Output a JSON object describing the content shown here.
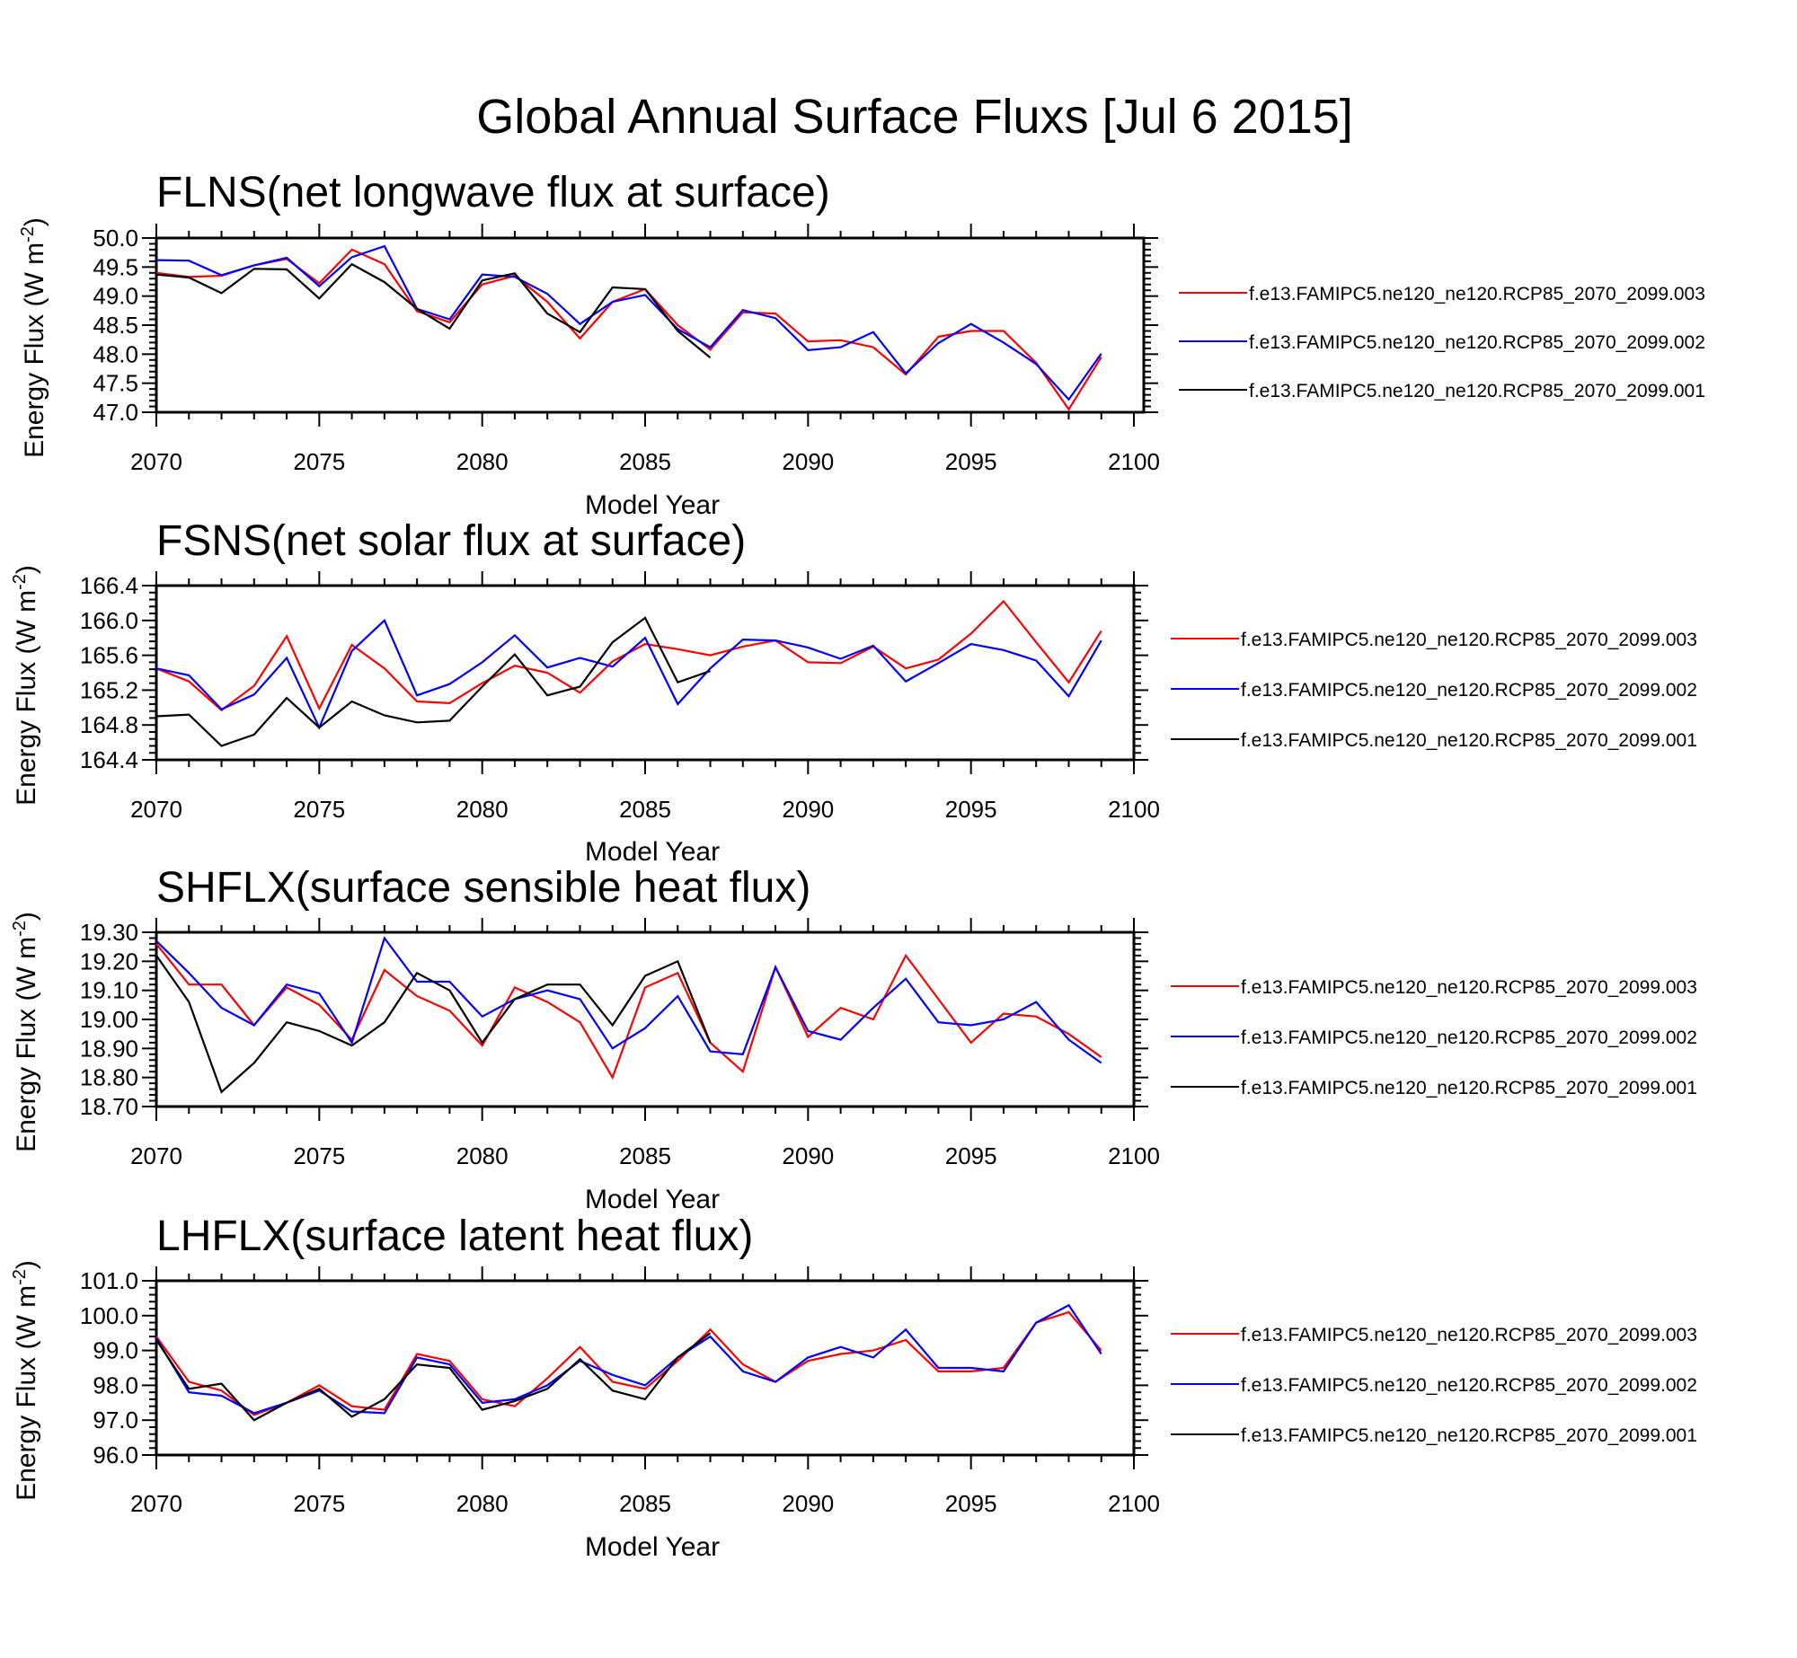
{
  "page_title": "Global Annual Surface Fluxs [Jul  6 2015]",
  "chart_data": [
    {
      "type": "line",
      "title": "FLNS(net longwave flux at surface)",
      "xlabel": "Model Year",
      "ylabel": "Energy Flux (W m-2)",
      "xlim": [
        2070,
        2100
      ],
      "ylim": [
        47.0,
        50.0
      ],
      "x_ticks": [
        "2070",
        "2075",
        "2080",
        "2085",
        "2090",
        "2095",
        "2100"
      ],
      "y_ticks": [
        "50.0",
        "49.5",
        "49.0",
        "48.5",
        "48.0",
        "47.5",
        "47.0"
      ],
      "legend_position": "right",
      "series": [
        {
          "name": "f.e13.FAMIPC5.ne120_ne120.RCP85_2070_2099.003",
          "color": "#ff0000",
          "x": [
            2070,
            2071,
            2072,
            2073,
            2074,
            2075,
            2076,
            2077,
            2078,
            2079,
            2080,
            2081,
            2082,
            2083,
            2084,
            2085,
            2086,
            2087,
            2088,
            2089,
            2090,
            2091,
            2092,
            2093,
            2094,
            2095,
            2096,
            2097,
            2098,
            2099
          ],
          "y": [
            49.4,
            49.33,
            49.35,
            49.53,
            49.64,
            49.22,
            49.8,
            49.55,
            48.74,
            48.55,
            49.2,
            49.35,
            48.9,
            48.27,
            48.9,
            49.12,
            48.5,
            48.08,
            48.72,
            48.7,
            48.22,
            48.24,
            48.12,
            47.65,
            48.3,
            48.4,
            48.4,
            47.85,
            47.05,
            47.95
          ]
        },
        {
          "name": "f.e13.FAMIPC5.ne120_ne120.RCP85_2070_2099.002",
          "color": "#0000ff",
          "x": [
            2070,
            2071,
            2072,
            2073,
            2074,
            2075,
            2076,
            2077,
            2078,
            2079,
            2080,
            2081,
            2082,
            2083,
            2084,
            2085,
            2086,
            2087,
            2088,
            2089,
            2090,
            2091,
            2092,
            2093,
            2094,
            2095,
            2096,
            2097,
            2098,
            2099
          ],
          "y": [
            49.62,
            49.61,
            49.36,
            49.53,
            49.66,
            49.17,
            49.67,
            49.86,
            48.78,
            48.6,
            49.37,
            49.33,
            49.04,
            48.52,
            48.9,
            49.02,
            48.43,
            48.12,
            48.76,
            48.62,
            48.07,
            48.12,
            48.38,
            47.67,
            48.19,
            48.52,
            48.2,
            47.83,
            47.22,
            48.01
          ]
        },
        {
          "name": "f.e13.FAMIPC5.ne120_ne120.RCP85_2070_2099.001",
          "color": "#000000",
          "x": [
            2070,
            2071,
            2072,
            2073,
            2074,
            2075,
            2076,
            2077,
            2078,
            2079,
            2080,
            2081,
            2082,
            2083,
            2084,
            2085,
            2086,
            2087
          ],
          "y": [
            49.37,
            49.32,
            49.05,
            49.47,
            49.46,
            48.96,
            49.55,
            49.24,
            48.78,
            48.44,
            49.27,
            49.39,
            48.7,
            48.38,
            49.15,
            49.12,
            48.4,
            47.94
          ]
        }
      ]
    },
    {
      "type": "line",
      "title": "FSNS(net solar flux at surface)",
      "xlabel": "Model Year",
      "ylabel": "Energy Flux (W m-2)",
      "xlim": [
        2070,
        2100
      ],
      "ylim": [
        164.4,
        166.4
      ],
      "x_ticks": [
        "2070",
        "2075",
        "2080",
        "2085",
        "2090",
        "2095",
        "2100"
      ],
      "y_ticks": [
        "166.4",
        "166.0",
        "165.6",
        "165.2",
        "164.8",
        "164.4"
      ],
      "legend_position": "right",
      "series": [
        {
          "name": "f.e13.FAMIPC5.ne120_ne120.RCP85_2070_2099.003",
          "color": "#ff0000",
          "x": [
            2070,
            2071,
            2072,
            2073,
            2074,
            2075,
            2076,
            2077,
            2078,
            2079,
            2080,
            2081,
            2082,
            2083,
            2084,
            2085,
            2086,
            2087,
            2088,
            2089,
            2090,
            2091,
            2092,
            2093,
            2094,
            2095,
            2096,
            2097,
            2098,
            2099
          ],
          "y": [
            165.45,
            165.3,
            164.97,
            165.25,
            165.82,
            164.99,
            165.72,
            165.45,
            165.07,
            165.05,
            165.28,
            165.48,
            165.4,
            165.17,
            165.53,
            165.73,
            165.67,
            165.6,
            165.7,
            165.77,
            165.52,
            165.51,
            165.7,
            165.45,
            165.55,
            165.85,
            166.22,
            165.75,
            165.29,
            165.88
          ]
        },
        {
          "name": "f.e13.FAMIPC5.ne120_ne120.RCP85_2070_2099.002",
          "color": "#0000ff",
          "x": [
            2070,
            2071,
            2072,
            2073,
            2074,
            2075,
            2076,
            2077,
            2078,
            2079,
            2080,
            2081,
            2082,
            2083,
            2084,
            2085,
            2086,
            2087,
            2088,
            2089,
            2090,
            2091,
            2092,
            2093,
            2094,
            2095,
            2096,
            2097,
            2098,
            2099
          ],
          "y": [
            165.45,
            165.37,
            164.98,
            165.15,
            165.57,
            164.77,
            165.65,
            166.0,
            165.14,
            165.27,
            165.52,
            165.83,
            165.46,
            165.57,
            165.47,
            165.8,
            165.04,
            165.45,
            165.78,
            165.77,
            165.69,
            165.56,
            165.71,
            165.3,
            165.51,
            165.73,
            165.66,
            165.54,
            165.13,
            165.77
          ]
        },
        {
          "name": "f.e13.FAMIPC5.ne120_ne120.RCP85_2070_2099.001",
          "color": "#000000",
          "x": [
            2070,
            2071,
            2072,
            2073,
            2074,
            2075,
            2076,
            2077,
            2078,
            2079,
            2080,
            2081,
            2082,
            2083,
            2084,
            2085,
            2086,
            2087
          ],
          "y": [
            164.9,
            164.92,
            164.56,
            164.69,
            165.11,
            164.77,
            165.07,
            164.91,
            164.83,
            164.85,
            165.24,
            165.61,
            165.14,
            165.24,
            165.75,
            166.03,
            165.29,
            165.42
          ]
        }
      ]
    },
    {
      "type": "line",
      "title": "SHFLX(surface sensible heat flux)",
      "xlabel": "Model Year",
      "ylabel": "Energy Flux (W m-2)",
      "xlim": [
        2070,
        2100
      ],
      "ylim": [
        18.7,
        19.3
      ],
      "x_ticks": [
        "2070",
        "2075",
        "2080",
        "2085",
        "2090",
        "2095",
        "2100"
      ],
      "y_ticks": [
        "19.30",
        "19.20",
        "19.10",
        "19.00",
        "18.90",
        "18.80",
        "18.70"
      ],
      "legend_position": "right",
      "series": [
        {
          "name": "f.e13.FAMIPC5.ne120_ne120.RCP85_2070_2099.003",
          "color": "#ff0000",
          "x": [
            2070,
            2071,
            2072,
            2073,
            2074,
            2075,
            2076,
            2077,
            2078,
            2079,
            2080,
            2081,
            2082,
            2083,
            2084,
            2085,
            2086,
            2087,
            2088,
            2089,
            2090,
            2091,
            2092,
            2093,
            2094,
            2095,
            2096,
            2097,
            2098,
            2099
          ],
          "y": [
            19.26,
            19.12,
            19.12,
            18.98,
            19.11,
            19.05,
            18.93,
            19.17,
            19.08,
            19.03,
            18.91,
            19.11,
            19.06,
            18.99,
            18.8,
            19.11,
            19.16,
            18.92,
            18.82,
            19.18,
            18.94,
            19.04,
            19.0,
            19.22,
            19.07,
            18.92,
            19.02,
            19.01,
            18.95,
            18.87
          ]
        },
        {
          "name": "f.e13.FAMIPC5.ne120_ne120.RCP85_2070_2099.002",
          "color": "#0000ff",
          "x": [
            2070,
            2071,
            2072,
            2073,
            2074,
            2075,
            2076,
            2077,
            2078,
            2079,
            2080,
            2081,
            2082,
            2083,
            2084,
            2085,
            2086,
            2087,
            2088,
            2089,
            2090,
            2091,
            2092,
            2093,
            2094,
            2095,
            2096,
            2097,
            2098,
            2099
          ],
          "y": [
            19.27,
            19.16,
            19.04,
            18.98,
            19.12,
            19.09,
            18.92,
            19.28,
            19.13,
            19.13,
            19.01,
            19.07,
            19.1,
            19.07,
            18.9,
            18.97,
            19.08,
            18.89,
            18.88,
            19.18,
            18.96,
            18.93,
            19.04,
            19.14,
            18.99,
            18.98,
            19.0,
            19.06,
            18.93,
            18.85
          ]
        },
        {
          "name": "f.e13.FAMIPC5.ne120_ne120.RCP85_2070_2099.001",
          "color": "#000000",
          "x": [
            2070,
            2071,
            2072,
            2073,
            2074,
            2075,
            2076,
            2077,
            2078,
            2079,
            2080,
            2081,
            2082,
            2083,
            2084,
            2085,
            2086,
            2087
          ],
          "y": [
            19.22,
            19.06,
            18.75,
            18.85,
            18.99,
            18.96,
            18.91,
            18.99,
            19.16,
            19.1,
            18.92,
            19.07,
            19.12,
            19.12,
            18.98,
            19.15,
            19.2,
            18.92
          ]
        }
      ]
    },
    {
      "type": "line",
      "title": "LHFLX(surface latent heat flux)",
      "xlabel": "Model Year",
      "ylabel": "Energy Flux (W m-2)",
      "xlim": [
        2070,
        2100
      ],
      "ylim": [
        96.0,
        101.0
      ],
      "x_ticks": [
        "2070",
        "2075",
        "2080",
        "2085",
        "2090",
        "2095",
        "2100"
      ],
      "y_ticks": [
        "101.0",
        "100.0",
        "99.0",
        "98.0",
        "97.0",
        "96.0"
      ],
      "legend_position": "right",
      "series": [
        {
          "name": "f.e13.FAMIPC5.ne120_ne120.RCP85_2070_2099.003",
          "color": "#ff0000",
          "x": [
            2070,
            2071,
            2072,
            2073,
            2074,
            2075,
            2076,
            2077,
            2078,
            2079,
            2080,
            2081,
            2082,
            2083,
            2084,
            2085,
            2086,
            2087,
            2088,
            2089,
            2090,
            2091,
            2092,
            2093,
            2094,
            2095,
            2096,
            2097,
            2098,
            2099
          ],
          "y": [
            99.4,
            98.1,
            97.85,
            97.15,
            97.5,
            98.0,
            97.4,
            97.3,
            98.9,
            98.7,
            97.6,
            97.4,
            98.2,
            99.1,
            98.1,
            97.9,
            98.7,
            99.6,
            98.6,
            98.1,
            98.7,
            98.9,
            99.0,
            99.3,
            98.4,
            98.4,
            98.5,
            99.8,
            100.1,
            99.0
          ]
        },
        {
          "name": "f.e13.FAMIPC5.ne120_ne120.RCP85_2070_2099.002",
          "color": "#0000ff",
          "x": [
            2070,
            2071,
            2072,
            2073,
            2074,
            2075,
            2076,
            2077,
            2078,
            2079,
            2080,
            2081,
            2082,
            2083,
            2084,
            2085,
            2086,
            2087,
            2088,
            2089,
            2090,
            2091,
            2092,
            2093,
            2094,
            2095,
            2096,
            2097,
            2098,
            2099
          ],
          "y": [
            99.35,
            97.8,
            97.7,
            97.2,
            97.5,
            97.85,
            97.25,
            97.2,
            98.8,
            98.6,
            97.5,
            97.6,
            98.0,
            98.7,
            98.3,
            98.0,
            98.8,
            99.4,
            98.4,
            98.1,
            98.8,
            99.1,
            98.8,
            99.6,
            98.5,
            98.5,
            98.4,
            99.8,
            100.3,
            98.9
          ]
        },
        {
          "name": "f.e13.FAMIPC5.ne120_ne120.RCP85_2070_2099.001",
          "color": "#000000",
          "x": [
            2070,
            2071,
            2072,
            2073,
            2074,
            2075,
            2076,
            2077,
            2078,
            2079,
            2080,
            2081,
            2082,
            2083,
            2084,
            2085,
            2086,
            2087
          ],
          "y": [
            99.3,
            97.9,
            98.05,
            97.0,
            97.5,
            97.9,
            97.1,
            97.6,
            98.6,
            98.5,
            97.3,
            97.55,
            97.9,
            98.75,
            97.85,
            97.6,
            98.8,
            99.5
          ]
        }
      ]
    }
  ]
}
